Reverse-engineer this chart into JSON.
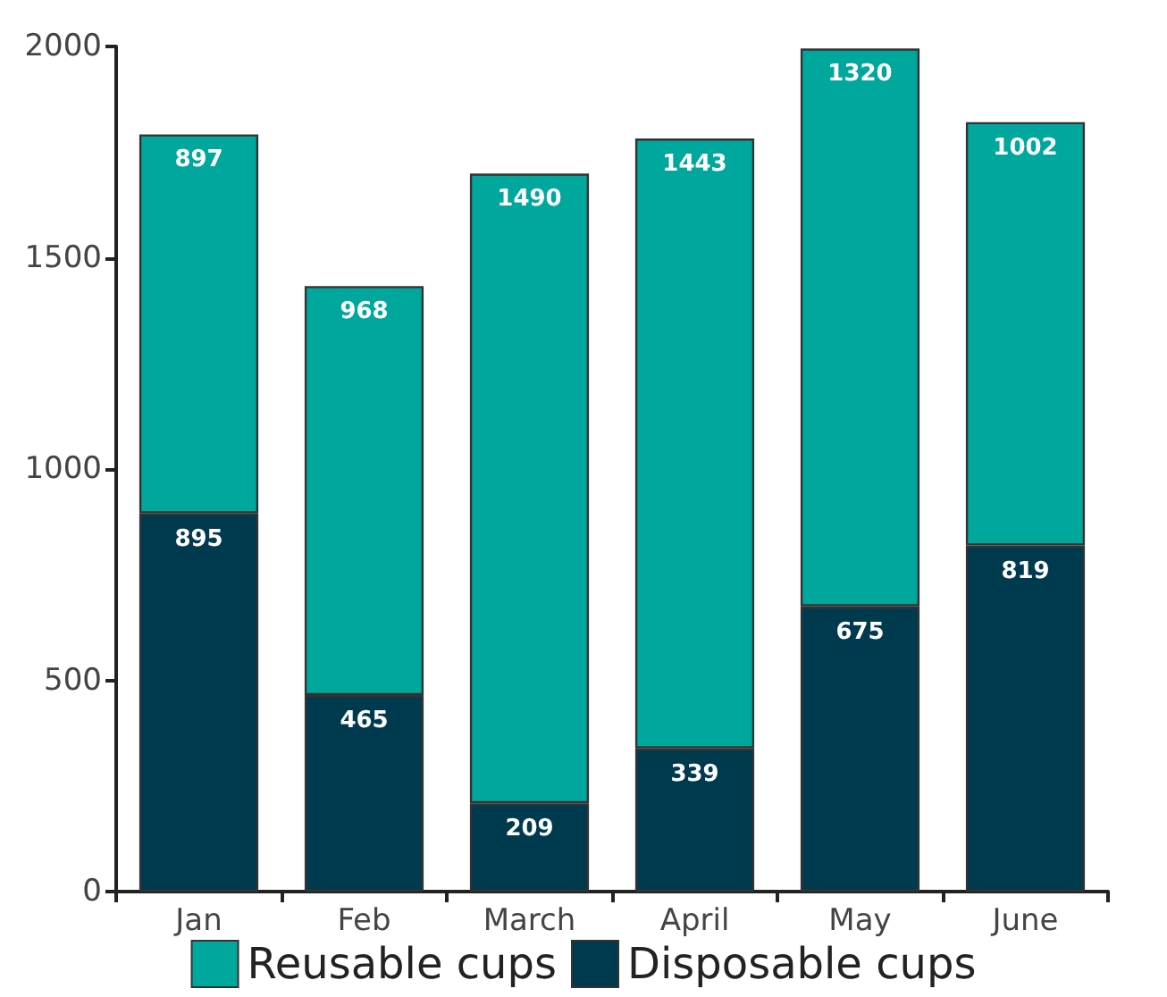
{
  "chart_data": {
    "type": "bar",
    "stacked": true,
    "categories": [
      "Jan",
      "Feb",
      "March",
      "April",
      "May",
      "June"
    ],
    "series": [
      {
        "name": "Disposable cups",
        "color": "#003a4f",
        "values": [
          895,
          465,
          209,
          339,
          675,
          819
        ]
      },
      {
        "name": "Reusable cups",
        "color": "#00a79d",
        "values": [
          897,
          968,
          1490,
          1443,
          1320,
          1002
        ]
      }
    ],
    "ylim": [
      0,
      2000
    ],
    "yticks": [
      0,
      500,
      1000,
      1500,
      2000
    ],
    "grid": false,
    "legend": "bottom",
    "data_labels": true
  }
}
